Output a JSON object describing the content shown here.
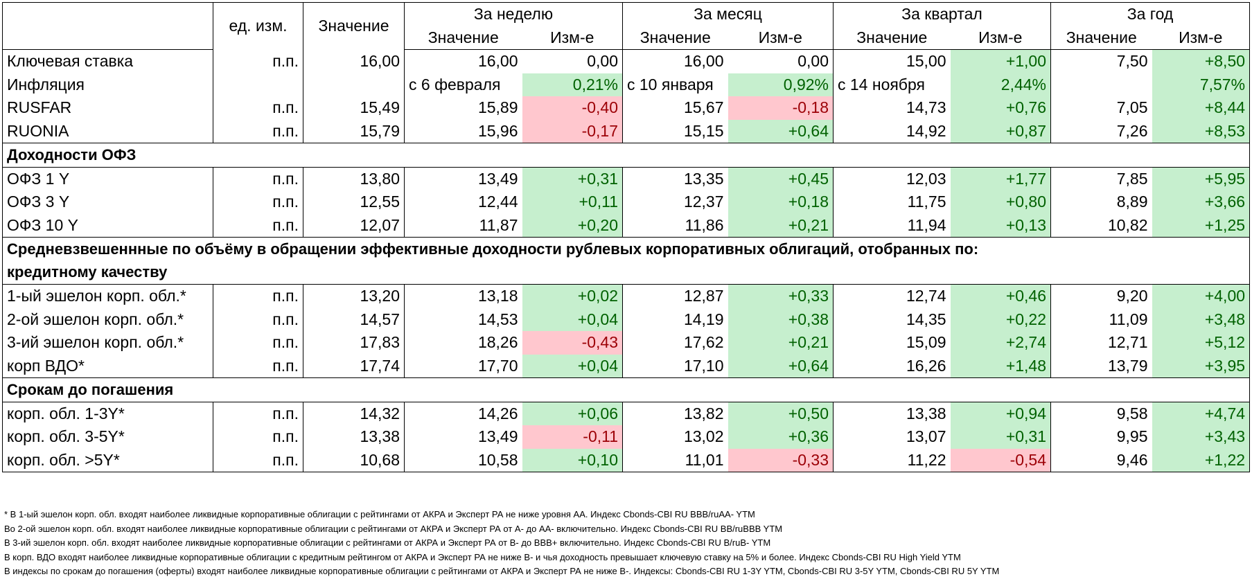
{
  "header": {
    "unit_label": "ед. изм.",
    "value_label": "Значение",
    "periods": [
      "За неделю",
      "За месяц",
      "За квартал",
      "За год"
    ],
    "sub_value": "Значение",
    "sub_change": "Изм-е"
  },
  "key_rows": [
    {
      "label": "Ключевая ставка",
      "unit": "п.п.",
      "value": "16,00",
      "cells": [
        {
          "v": "16,00",
          "c": "0,00",
          "s": ""
        },
        {
          "v": "16,00",
          "c": "0,00",
          "s": ""
        },
        {
          "v": "15,00",
          "c": "+1,00",
          "s": "up"
        },
        {
          "v": "7,50",
          "c": "+8,50",
          "s": "up"
        }
      ]
    },
    {
      "label": "Инфляция",
      "unit": "",
      "value": "",
      "cells": [
        {
          "v": "с 6 февраля",
          "c": "0,21%",
          "s": "up"
        },
        {
          "v": "с 10 января",
          "c": "0,92%",
          "s": "up"
        },
        {
          "v": "с 14 ноября",
          "c": "2,44%",
          "s": "up"
        },
        {
          "v": "",
          "c": "7,57%",
          "s": "up"
        }
      ]
    },
    {
      "label": "RUSFAR",
      "unit": "п.п.",
      "value": "15,49",
      "cells": [
        {
          "v": "15,89",
          "c": "-0,40",
          "s": "down"
        },
        {
          "v": "15,67",
          "c": "-0,18",
          "s": "down"
        },
        {
          "v": "14,73",
          "c": "+0,76",
          "s": "up"
        },
        {
          "v": "7,05",
          "c": "+8,44",
          "s": "up"
        }
      ]
    },
    {
      "label": "RUONIA",
      "unit": "п.п.",
      "value": "15,79",
      "cells": [
        {
          "v": "15,96",
          "c": "-0,17",
          "s": "down"
        },
        {
          "v": "15,15",
          "c": "+0,64",
          "s": "up"
        },
        {
          "v": "14,92",
          "c": "+0,87",
          "s": "up"
        },
        {
          "v": "7,26",
          "c": "+8,53",
          "s": "up"
        }
      ]
    }
  ],
  "ofz_section": {
    "title": "Доходности ОФЗ",
    "rows": [
      {
        "label": "ОФЗ 1 Y",
        "unit": "п.п.",
        "value": "13,80",
        "cells": [
          {
            "v": "13,49",
            "c": "+0,31",
            "s": "up"
          },
          {
            "v": "13,35",
            "c": "+0,45",
            "s": "up"
          },
          {
            "v": "12,03",
            "c": "+1,77",
            "s": "up"
          },
          {
            "v": "7,85",
            "c": "+5,95",
            "s": "up"
          }
        ]
      },
      {
        "label": "ОФЗ 3 Y",
        "unit": "п.п.",
        "value": "12,55",
        "cells": [
          {
            "v": "12,44",
            "c": "+0,11",
            "s": "up"
          },
          {
            "v": "12,37",
            "c": "+0,18",
            "s": "up"
          },
          {
            "v": "11,75",
            "c": "+0,80",
            "s": "up"
          },
          {
            "v": "8,89",
            "c": "+3,66",
            "s": "up"
          }
        ]
      },
      {
        "label": "ОФЗ 10 Y",
        "unit": "п.п.",
        "value": "12,07",
        "cells": [
          {
            "v": "11,87",
            "c": "+0,20",
            "s": "up"
          },
          {
            "v": "11,86",
            "c": "+0,21",
            "s": "up"
          },
          {
            "v": "11,94",
            "c": "+0,13",
            "s": "up"
          },
          {
            "v": "10,82",
            "c": "+1,25",
            "s": "up"
          }
        ]
      }
    ]
  },
  "corp_section": {
    "title_line1": "Средневзвешеннные по объёму в обращении эффективные доходности рублевых корпоративных облигаций, отобранных по:",
    "title_line2": "кредитному качеству",
    "rows": [
      {
        "label": "1-ый эшелон корп. обл.*",
        "unit": "п.п.",
        "value": "13,20",
        "cells": [
          {
            "v": "13,18",
            "c": "+0,02",
            "s": "up"
          },
          {
            "v": "12,87",
            "c": "+0,33",
            "s": "up"
          },
          {
            "v": "12,74",
            "c": "+0,46",
            "s": "up"
          },
          {
            "v": "9,20",
            "c": "+4,00",
            "s": "up"
          }
        ]
      },
      {
        "label": "2-ой эшелон корп. обл.*",
        "unit": "п.п.",
        "value": "14,57",
        "cells": [
          {
            "v": "14,53",
            "c": "+0,04",
            "s": "up"
          },
          {
            "v": "14,19",
            "c": "+0,38",
            "s": "up"
          },
          {
            "v": "14,35",
            "c": "+0,22",
            "s": "up"
          },
          {
            "v": "11,09",
            "c": "+3,48",
            "s": "up"
          }
        ]
      },
      {
        "label": "3-ий эшелон корп. обл.*",
        "unit": "п.п.",
        "value": "17,83",
        "cells": [
          {
            "v": "18,26",
            "c": "-0,43",
            "s": "down"
          },
          {
            "v": "17,62",
            "c": "+0,21",
            "s": "up"
          },
          {
            "v": "15,09",
            "c": "+2,74",
            "s": "up"
          },
          {
            "v": "12,71",
            "c": "+5,12",
            "s": "up"
          }
        ]
      },
      {
        "label": "корп ВДО*",
        "unit": "п.п.",
        "value": "17,74",
        "cells": [
          {
            "v": "17,70",
            "c": "+0,04",
            "s": "up"
          },
          {
            "v": "17,10",
            "c": "+0,64",
            "s": "up"
          },
          {
            "v": "16,26",
            "c": "+1,48",
            "s": "up"
          },
          {
            "v": "13,79",
            "c": "+3,95",
            "s": "up"
          }
        ]
      }
    ]
  },
  "maturity_section": {
    "title": "Срокам до погашения",
    "rows": [
      {
        "label": "корп. обл. 1-3Y*",
        "unit": "п.п.",
        "value": "14,32",
        "cells": [
          {
            "v": "14,26",
            "c": "+0,06",
            "s": "up"
          },
          {
            "v": "13,82",
            "c": "+0,50",
            "s": "up"
          },
          {
            "v": "13,38",
            "c": "+0,94",
            "s": "up"
          },
          {
            "v": "9,58",
            "c": "+4,74",
            "s": "up"
          }
        ]
      },
      {
        "label": "корп. обл. 3-5Y*",
        "unit": "п.п.",
        "value": "13,38",
        "cells": [
          {
            "v": "13,49",
            "c": "-0,11",
            "s": "down"
          },
          {
            "v": "13,02",
            "c": "+0,36",
            "s": "up"
          },
          {
            "v": "13,07",
            "c": "+0,31",
            "s": "up"
          },
          {
            "v": "9,95",
            "c": "+3,43",
            "s": "up"
          }
        ]
      },
      {
        "label": "корп. обл. >5Y*",
        "unit": "п.п.",
        "value": "10,68",
        "cells": [
          {
            "v": "10,58",
            "c": "+0,10",
            "s": "up"
          },
          {
            "v": "11,01",
            "c": "-0,33",
            "s": "down"
          },
          {
            "v": "11,22",
            "c": "-0,54",
            "s": "down"
          },
          {
            "v": "9,46",
            "c": "+1,22",
            "s": "up"
          }
        ]
      }
    ]
  },
  "footnotes": [
    "* В 1-ый эшелон корп. обл. входят наиболее ликвидные корпоративные облигации с рейтингами от АКРА и Эксперт РА не ниже уровня АА. Индекс Cbonds-CBI RU BBB/ruAA- YTM",
    "Во 2-ой эшелон корп. обл. входят наиболее ликвидные корпоративные облигации с рейтингами от АКРА и Эксперт РА от А- до АА- включительно.  Индекс Cbonds-CBI RU BB/ruBBB YTM",
    "В 3-ий эшелон корп. обл. входят наиболее ликвидные корпоративные облигации с рейтингами от АКРА и Эксперт РА от В- до BBB+ включительно.  Индекс Cbonds-CBI RU B/ruB- YTM",
    "В корп. ВДО входят наиболее ликвидные корпоративные облигации с кредитным рейтингом от АКРА и Эксперт РА не ниже B- и чья доходность превышает ключевую ставку на 5% и более. Индекс  Cbonds-CBI RU High Yield YTM",
    "В индексы по срокам до погашения (оферты) входят наиболее ликвидные корпоративные облигации с рейтингами от АКРА и Эксперт РА не ниже В-. Индексы:  Cbonds-CBI RU 1-3Y YTM, Cbonds-CBI RU 3-5Y YTM, Cbonds-CBI RU 5Y YTM"
  ]
}
